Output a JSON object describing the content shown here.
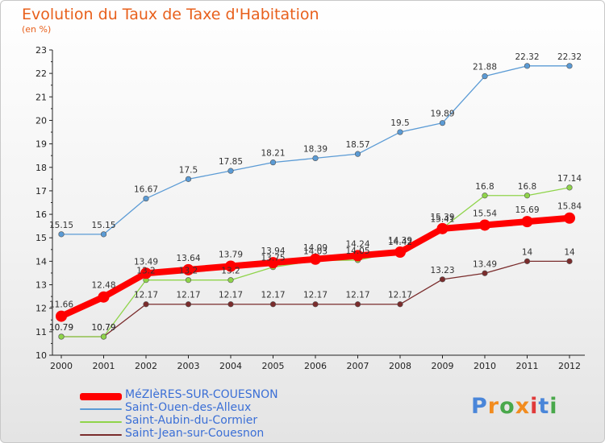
{
  "title": "Evolution du Taux de Taxe d'Habitation",
  "unit": "(en %)",
  "logo": {
    "text": "Proxiti",
    "colors": [
      "#4a86d9",
      "#f28c1f",
      "#49a84b",
      "#f28c1f",
      "#e03a3a",
      "#4a86d9",
      "#49a84b"
    ]
  },
  "chart_data": {
    "type": "line",
    "title": "Evolution du Taux de Taxe d'Habitation",
    "ylabel": "(en %)",
    "xlabel": "",
    "ylim": [
      10,
      23
    ],
    "yticks": [
      10,
      11,
      12,
      13,
      14,
      15,
      16,
      17,
      18,
      19,
      20,
      21,
      22,
      23
    ],
    "grid": false,
    "legend": "bottom-left",
    "x": [
      "2000",
      "2001",
      "2002",
      "2003",
      "2004",
      "2005",
      "2006",
      "2007",
      "2008",
      "2009",
      "2010",
      "2011",
      "2012"
    ],
    "series": [
      {
        "name": "MéZIèRES-SUR-COUESNON",
        "color": "#ff0000",
        "values": [
          11.66,
          12.48,
          13.49,
          13.64,
          13.79,
          13.94,
          14.09,
          14.24,
          14.39,
          15.39,
          15.54,
          15.69,
          15.84
        ]
      },
      {
        "name": "Saint-Ouen-des-Alleux",
        "color": "#5b9bd5",
        "values": [
          15.15,
          15.15,
          16.67,
          17.5,
          17.85,
          18.21,
          18.39,
          18.57,
          19.5,
          19.89,
          21.88,
          22.32,
          22.32
        ]
      },
      {
        "name": "Saint-Aubin-du-Cormier",
        "color": "#8fd44a",
        "values": [
          10.79,
          10.79,
          13.2,
          13.2,
          13.2,
          13.75,
          14.03,
          14.05,
          14.42,
          15.41,
          16.8,
          16.8,
          17.14
        ]
      },
      {
        "name": "Saint-Jean-sur-Couesnon",
        "color": "#7a2c2c",
        "values": [
          10.79,
          10.79,
          12.17,
          12.17,
          12.17,
          12.17,
          12.17,
          12.17,
          12.17,
          13.23,
          13.49,
          14,
          14
        ]
      }
    ]
  }
}
